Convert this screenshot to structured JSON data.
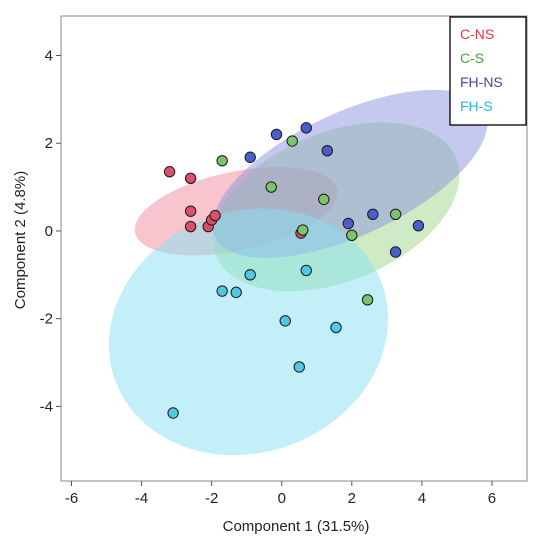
{
  "chart_data": {
    "type": "scatter",
    "xlabel": "Component 1 (31.5%)",
    "ylabel": "Component 2 (4.8%)",
    "xlim": [
      -6.3,
      7.0
    ],
    "ylim": [
      -5.7,
      4.9
    ],
    "xticks": [
      "-6",
      "-4",
      "-2",
      "0",
      "2",
      "4",
      "6"
    ],
    "yticks": [
      "-4",
      "-2",
      "0",
      "2",
      "4"
    ],
    "grid": false,
    "legend_position": "top-right",
    "series": [
      {
        "name": "C-NS",
        "color": "#e8323c",
        "point_fill": "#d9506a",
        "ellipse_fill": "#f28ca0",
        "points": [
          [
            -3.2,
            1.35
          ],
          [
            -2.6,
            1.2
          ],
          [
            -2.6,
            0.45
          ],
          [
            -2.6,
            0.1
          ],
          [
            -2.1,
            0.1
          ],
          [
            -2.0,
            0.25
          ],
          [
            -1.9,
            0.35
          ],
          [
            0.55,
            -0.05
          ]
        ],
        "ellipse": {
          "cx": -1.3,
          "cy": 0.45,
          "rx": 2.95,
          "ry": 0.9,
          "angle_deg": -12
        }
      },
      {
        "name": "C-S",
        "color": "#4a9e40",
        "point_fill": "#7cc46a",
        "ellipse_fill": "#9fd88c",
        "points": [
          [
            -1.7,
            1.6
          ],
          [
            -0.3,
            1.0
          ],
          [
            0.3,
            2.05
          ],
          [
            0.6,
            0.02
          ],
          [
            1.2,
            0.72
          ],
          [
            2.0,
            -0.1
          ],
          [
            2.45,
            -1.57
          ],
          [
            3.25,
            0.38
          ]
        ],
        "ellipse": {
          "cx": 1.55,
          "cy": 0.55,
          "rx": 3.7,
          "ry": 1.7,
          "angle_deg": -22
        }
      },
      {
        "name": "FH-NS",
        "color": "#5c3c9e",
        "point_fill": "#4a5fcc",
        "ellipse_fill": "#8e94e0",
        "points": [
          [
            -0.9,
            1.68
          ],
          [
            -0.15,
            2.2
          ],
          [
            0.7,
            2.35
          ],
          [
            1.3,
            1.83
          ],
          [
            1.9,
            0.17
          ],
          [
            2.6,
            0.38
          ],
          [
            3.25,
            -0.48
          ],
          [
            3.9,
            0.12
          ]
        ],
        "ellipse": {
          "cx": 1.95,
          "cy": 1.3,
          "rx": 4.25,
          "ry": 1.4,
          "angle_deg": -25
        }
      },
      {
        "name": "FH-S",
        "color": "#21b8d8",
        "point_fill": "#4ec8e3",
        "ellipse_fill": "#88e2f2",
        "points": [
          [
            -3.1,
            -4.15
          ],
          [
            -1.7,
            -1.37
          ],
          [
            -1.3,
            -1.4
          ],
          [
            -0.9,
            -1.0
          ],
          [
            0.1,
            -2.05
          ],
          [
            0.5,
            -3.1
          ],
          [
            0.7,
            -0.9
          ],
          [
            1.55,
            -2.2
          ]
        ],
        "ellipse": {
          "cx": -0.95,
          "cy": -2.3,
          "rx": 4.05,
          "ry": 2.75,
          "angle_deg": -20
        }
      }
    ]
  }
}
